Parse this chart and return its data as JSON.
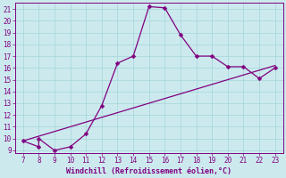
{
  "xlabel": "Windchill (Refroidissement éolien,°C)",
  "x_data": [
    7,
    8,
    8,
    9,
    10,
    11,
    12,
    13,
    14,
    15,
    16,
    17,
    18,
    19,
    20,
    21,
    22,
    23
  ],
  "y_data": [
    9.8,
    9.3,
    10.0,
    9.0,
    9.3,
    10.4,
    12.8,
    16.4,
    17.0,
    21.2,
    21.1,
    18.8,
    17.0,
    17.0,
    16.1,
    16.1,
    15.1,
    16.0
  ],
  "line2_x": [
    7,
    23
  ],
  "line2_y": [
    9.8,
    16.2
  ],
  "line_color": "#800080",
  "marker": "D",
  "marker_size": 2.5,
  "bg_color": "#cceaee",
  "grid_color": "#aad8dc",
  "xlim": [
    6.5,
    23.5
  ],
  "ylim": [
    8.8,
    21.5
  ],
  "xticks": [
    7,
    8,
    9,
    10,
    11,
    12,
    13,
    14,
    15,
    16,
    17,
    18,
    19,
    20,
    21,
    22,
    23
  ],
  "yticks": [
    9,
    10,
    11,
    12,
    13,
    14,
    15,
    16,
    17,
    18,
    19,
    20,
    21
  ],
  "tick_fontsize": 5.5,
  "label_fontsize": 6.0,
  "line_width": 0.9
}
